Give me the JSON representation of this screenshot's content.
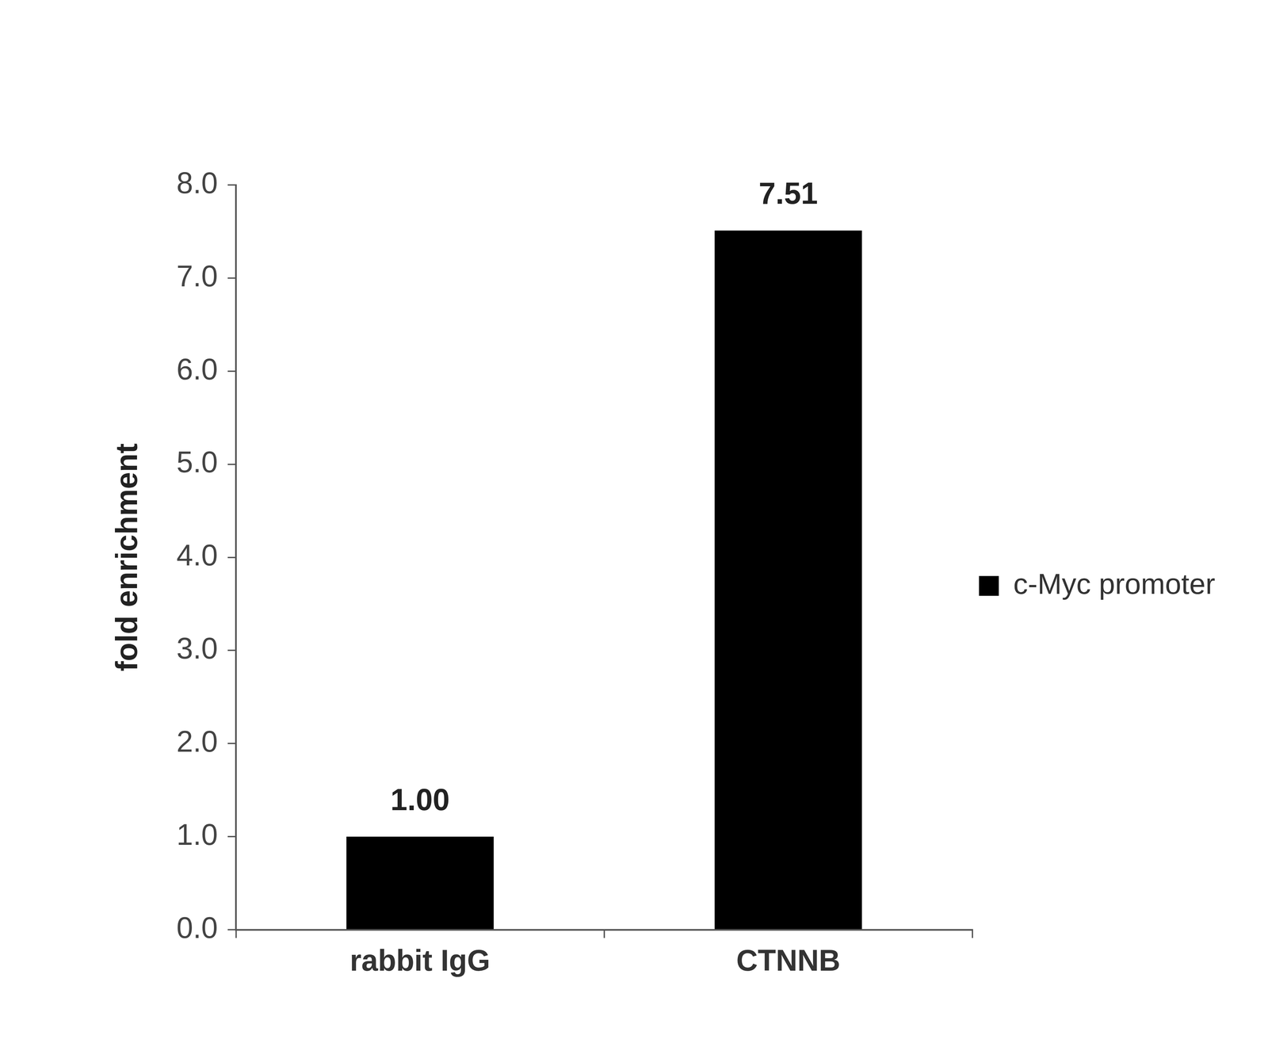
{
  "chart_data": {
    "type": "bar",
    "y_label": "fold enrichment",
    "categories": [
      "rabbit IgG",
      "CTNNB"
    ],
    "series": [
      {
        "name": "c-Myc promoter",
        "color": "#000000",
        "values": [
          1.0,
          7.51
        ],
        "value_labels": [
          "1.00",
          "7.51"
        ]
      }
    ],
    "ylim": [
      0,
      8
    ],
    "yticks": [
      {
        "value": 0,
        "label": "0.0"
      },
      {
        "value": 1,
        "label": "1.0"
      },
      {
        "value": 2,
        "label": "2.0"
      },
      {
        "value": 3,
        "label": "3.0"
      },
      {
        "value": 4,
        "label": "4.0"
      },
      {
        "value": 5,
        "label": "5.0"
      },
      {
        "value": 6,
        "label": "6.0"
      },
      {
        "value": 7,
        "label": "7.0"
      },
      {
        "value": 8,
        "label": "8.0"
      }
    ],
    "grid": false,
    "legend": "right",
    "data_labels": true
  }
}
